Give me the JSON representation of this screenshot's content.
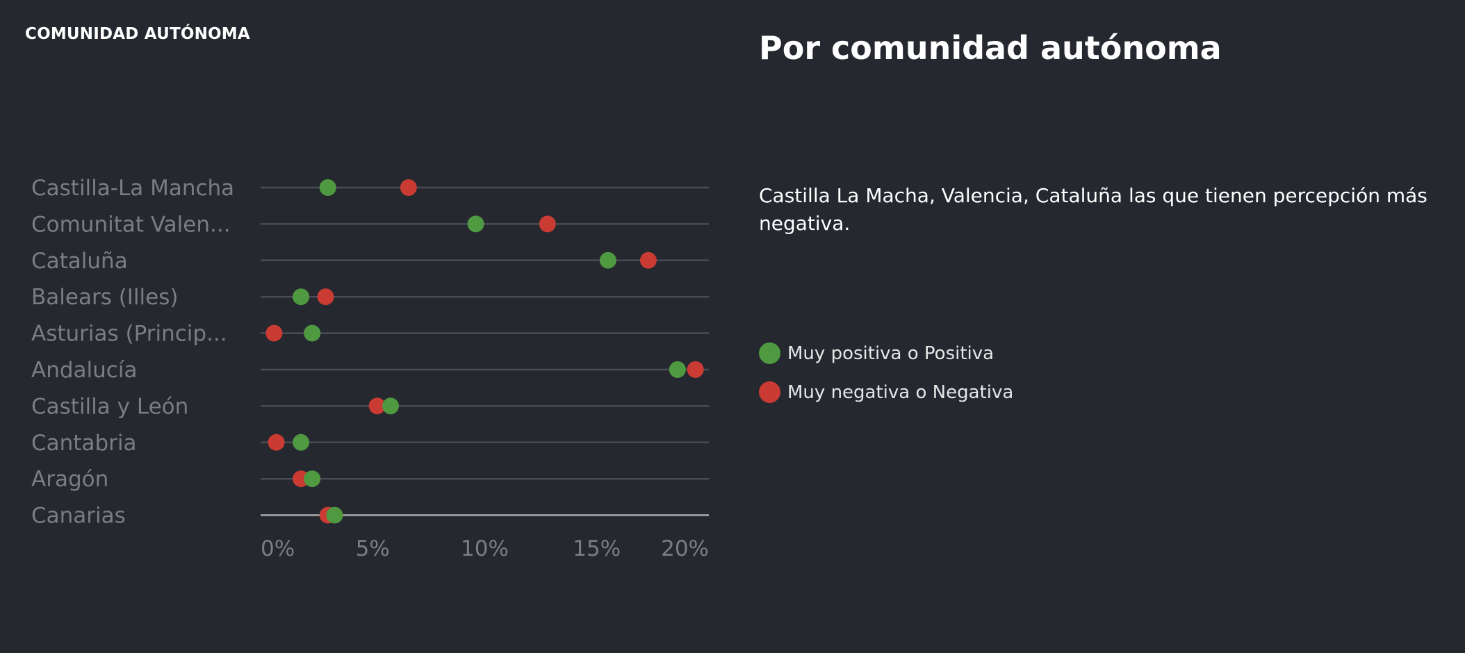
{
  "header": {
    "section_label": "COMUNIDAD AUTÓNOMA"
  },
  "panel": {
    "title": "Por comunidad autónoma",
    "description": "Castilla La Macha, Valencia, Cataluña las que tienen percepción más negativa."
  },
  "legend": {
    "positive_label": "Muy positiva o Positiva",
    "negative_label": "Muy negativa o Negativa"
  },
  "colors": {
    "background": "#262830",
    "positive": "#4f9a41",
    "negative": "#c93b33",
    "gridline": "#4a4c55",
    "axis": "#9a9a9a",
    "category_text": "#7b7d84",
    "tick_text": "#7b7d84"
  },
  "chart_data": {
    "type": "scatter",
    "orientation": "horizontal-dot-plot",
    "categories": [
      "Castilla-La Mancha",
      "Comunitat Valen...",
      "Cataluña",
      "Balears (Illes)",
      "Asturias (Princip...",
      "Andalucía",
      "Castilla y León",
      "Cantabria",
      "Aragón",
      "Canarias"
    ],
    "series": [
      {
        "name": "Muy positiva o Positiva",
        "values": [
          3.0,
          9.6,
          15.5,
          1.8,
          2.3,
          18.6,
          5.8,
          1.8,
          2.3,
          3.3
        ]
      },
      {
        "name": "Muy negativa o Negativa",
        "values": [
          6.6,
          12.8,
          17.3,
          2.9,
          0.6,
          19.4,
          5.2,
          0.7,
          1.8,
          3.0
        ]
      }
    ],
    "xticks": [
      "0%",
      "5%",
      "10%",
      "15%",
      "20%"
    ],
    "xlim": [
      0,
      20
    ],
    "grid": true
  }
}
